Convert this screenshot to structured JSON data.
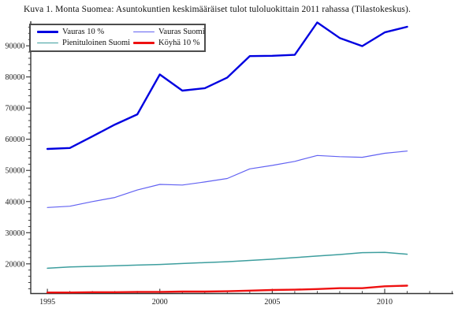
{
  "title": "Kuva 1. Monta Suomea: Asuntokuntien keskimääräiset tulot tuloluokittain 2011 rahassa (Tilastokeskus).",
  "chart_data": {
    "type": "line",
    "title": "Kuva 1. Monta Suomea: Asuntokuntien keskimääräiset tulot tuloluokittain 2011 rahassa (Tilastokeskus).",
    "xlabel": "",
    "ylabel": "",
    "grid": false,
    "legend_position": "top-left",
    "axis_color": "#333333",
    "tick_label_color": "#1b1b1b",
    "x": [
      1995,
      1996,
      1997,
      1998,
      1999,
      2000,
      2001,
      2002,
      2003,
      2004,
      2005,
      2006,
      2007,
      2008,
      2009,
      2010,
      2011
    ],
    "series": [
      {
        "key": "vauras-10",
        "name": "Vauras 10 %",
        "color": "#0000e0",
        "width": 2.4,
        "values": [
          56900,
          57200,
          60900,
          64700,
          68000,
          80800,
          75600,
          76400,
          79800,
          86700,
          86800,
          87100,
          97500,
          92500,
          89900,
          94300,
          96100
        ]
      },
      {
        "key": "vauras-suomi",
        "name": "Vauras Suomi",
        "color": "#6262f2",
        "width": 1.2,
        "values": [
          38100,
          38500,
          40000,
          41300,
          43700,
          45500,
          45300,
          46300,
          47400,
          50500,
          51600,
          52900,
          54800,
          54400,
          54200,
          55500,
          56200
        ]
      },
      {
        "key": "pienituloinen-suomi",
        "name": "Pienituloinen Suomi",
        "color": "#3d9e9e",
        "width": 1.5,
        "values": [
          18600,
          19000,
          19200,
          19400,
          19600,
          19800,
          20100,
          20400,
          20700,
          21100,
          21500,
          22000,
          22500,
          23000,
          23600,
          23700,
          23100
        ]
      },
      {
        "key": "koyha-10",
        "name": "Köyhä 10 %",
        "color": "#ee1111",
        "width": 2.4,
        "values": [
          10800,
          10800,
          10900,
          10900,
          11000,
          11000,
          11100,
          11100,
          11200,
          11400,
          11600,
          11700,
          11900,
          12200,
          12200,
          12800,
          13000
        ]
      }
    ],
    "xlim": [
      1994.26,
      2013.05
    ],
    "ylim": [
      10470,
      97870
    ],
    "x_ticks_major": [
      1995,
      2000,
      2005,
      2010
    ],
    "x_tick_labels": [
      "1995",
      "2000",
      "2005",
      "2010"
    ],
    "x_minor_step": 1,
    "y_ticks_major": [
      20000,
      30000,
      40000,
      50000,
      60000,
      70000,
      80000,
      90000
    ],
    "y_tick_labels": [
      "20000",
      "30000",
      "40000",
      "50000",
      "60000",
      "70000",
      "80000",
      "90000"
    ],
    "y_minor_step": 2000
  }
}
